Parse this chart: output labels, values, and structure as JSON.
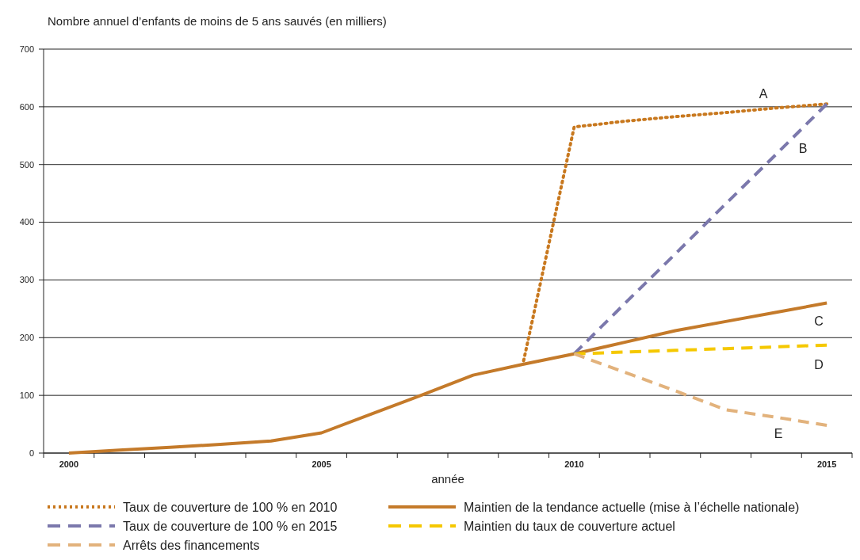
{
  "chart_data": {
    "type": "line",
    "ylabel": "Nombre annuel d’enfants de moins de 5 ans sauvés (en milliers)",
    "xlabel": "année",
    "categories": [
      "2000",
      null,
      null,
      null,
      null,
      "2005",
      null,
      null,
      null,
      null,
      "2010",
      null,
      null,
      null,
      null,
      "2015"
    ],
    "series": [
      {
        "name": "Taux de couverture de 100 % en 2010",
        "color": "#c8781e",
        "line_style": "dotted",
        "values": [
          null,
          null,
          null,
          null,
          null,
          null,
          null,
          null,
          null,
          160,
          565,
          575,
          583,
          590,
          598,
          605
        ]
      },
      {
        "name": "Maintien de la tendance actuelle (mise à l’échelle nationale)",
        "color": "#c47a2a",
        "line_style": "solid",
        "values": [
          0,
          5,
          10,
          15,
          21,
          35,
          68,
          101,
          135,
          154,
          172,
          192,
          212,
          228,
          244,
          260
        ]
      },
      {
        "name": "Taux de couverture de 100 % en 2015",
        "color": "#7b78ac",
        "line_style": "dashed",
        "values": [
          null,
          null,
          null,
          null,
          null,
          null,
          null,
          null,
          null,
          null,
          172,
          259,
          345,
          432,
          518,
          605
        ]
      },
      {
        "name": "Maintien du taux de couverture actuel",
        "color": "#f5c800",
        "line_style": "dashed",
        "values": [
          null,
          null,
          null,
          null,
          null,
          null,
          null,
          null,
          null,
          null,
          172,
          175,
          178,
          181,
          184,
          187
        ]
      },
      {
        "name": "Arrêts des financements",
        "color": "#e2b27c",
        "line_style": "dashed",
        "values": [
          null,
          null,
          null,
          null,
          null,
          null,
          null,
          null,
          null,
          null,
          172,
          140,
          108,
          75,
          62,
          48
        ]
      }
    ],
    "annotations": [
      "A",
      "B",
      "C",
      "D",
      "E"
    ],
    "ylim": [
      0,
      700
    ],
    "yticks": [
      0,
      100,
      200,
      300,
      400,
      500,
      600,
      700
    ],
    "grid": "y",
    "legend": "bottom"
  }
}
